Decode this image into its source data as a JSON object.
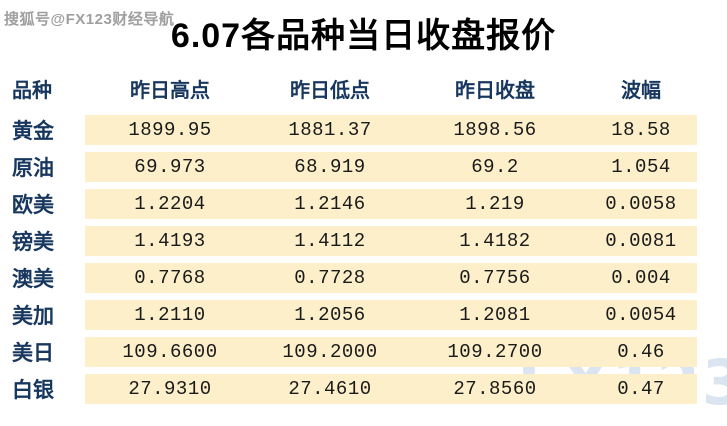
{
  "watermarks": {
    "account": "搜狐号@FX123财经导航",
    "brand": "FX123"
  },
  "title": "6.07各品种当日收盘报价",
  "colors": {
    "row_band": "#fcefca",
    "header_text": "#17375e",
    "number_text": "#1a1a1a",
    "brand_watermark": "#dbe5f1"
  },
  "chart_data": {
    "type": "table",
    "title": "6.07各品种当日收盘报价",
    "columns": [
      "品种",
      "昨日高点",
      "昨日低点",
      "昨日收盘",
      "波幅"
    ],
    "rows": [
      {
        "name": "黄金",
        "high": "1899.95",
        "low": "1881.37",
        "close": "1898.56",
        "range": "18.58"
      },
      {
        "name": "原油",
        "high": "69.973",
        "low": "68.919",
        "close": "69.2",
        "range": "1.054"
      },
      {
        "name": "欧美",
        "high": "1.2204",
        "low": "1.2146",
        "close": "1.219",
        "range": "0.0058"
      },
      {
        "name": "镑美",
        "high": "1.4193",
        "low": "1.4112",
        "close": "1.4182",
        "range": "0.0081"
      },
      {
        "name": "澳美",
        "high": "0.7768",
        "low": "0.7728",
        "close": "0.7756",
        "range": "0.004"
      },
      {
        "name": "美加",
        "high": "1.2110",
        "low": "1.2056",
        "close": "1.2081",
        "range": "0.0054"
      },
      {
        "name": "美日",
        "high": "109.6600",
        "low": "109.2000",
        "close": "109.2700",
        "range": "0.46"
      },
      {
        "name": "白银",
        "high": "27.9310",
        "low": "27.4610",
        "close": "27.8560",
        "range": "0.47"
      }
    ]
  }
}
